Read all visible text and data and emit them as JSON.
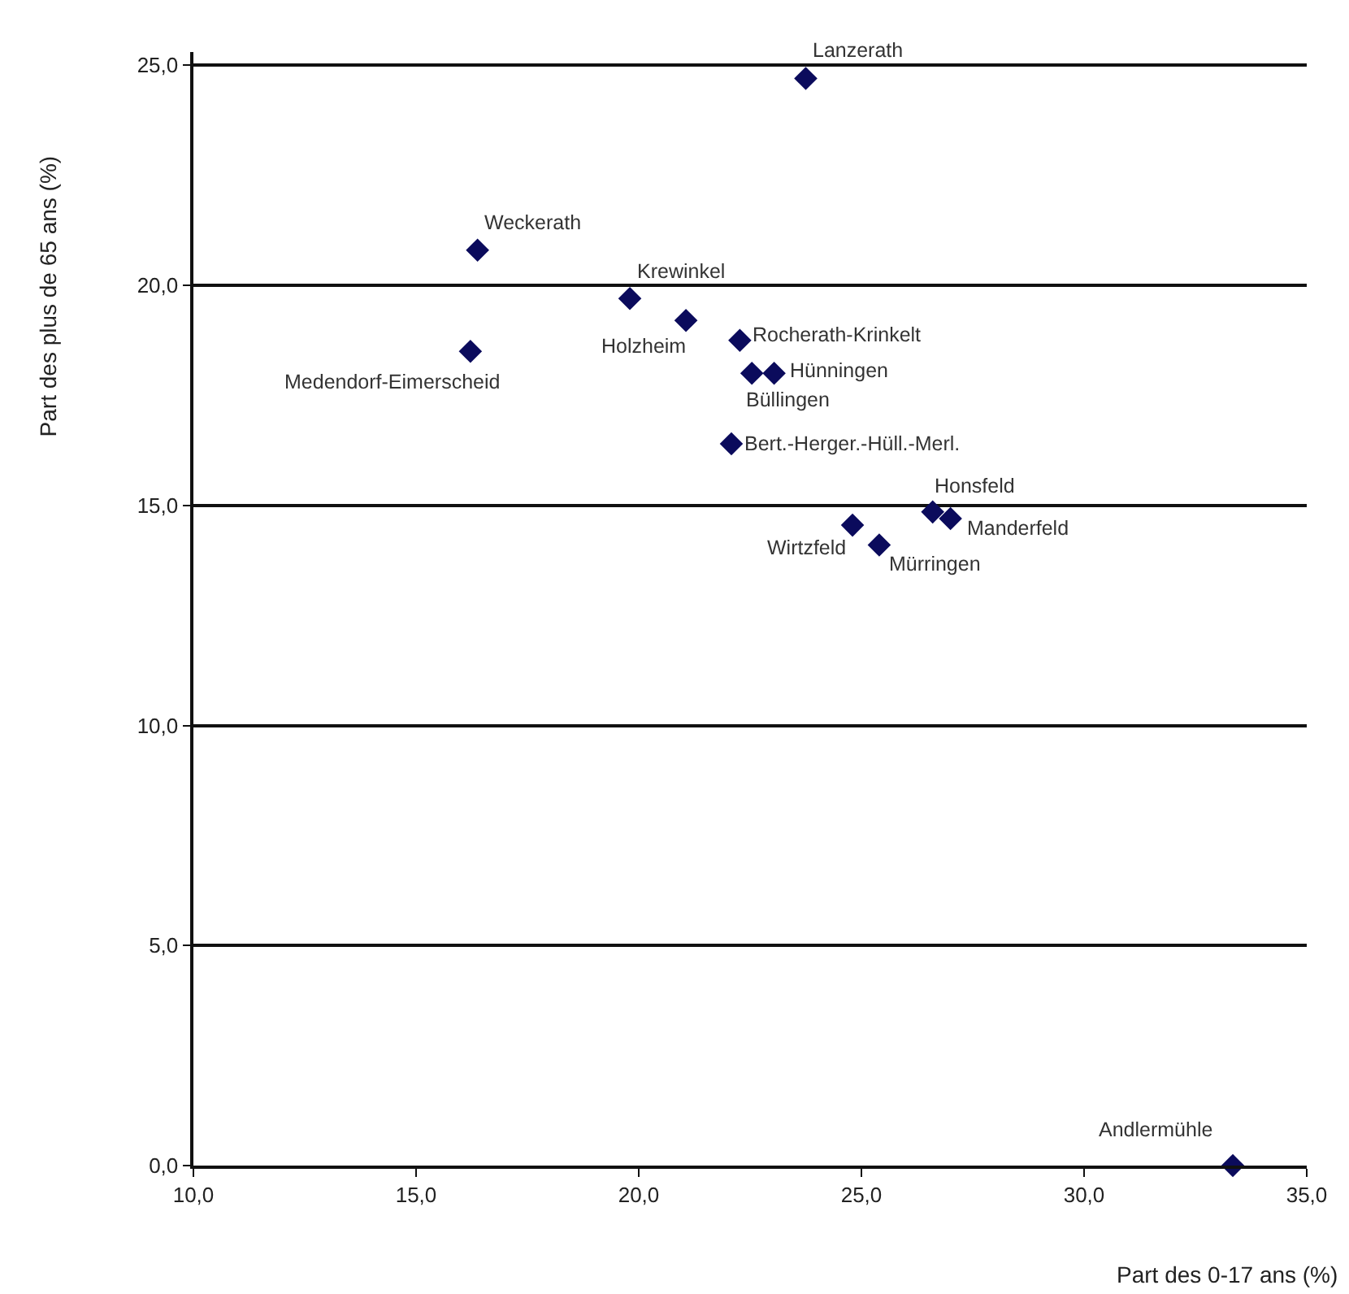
{
  "chart_data": {
    "type": "scatter",
    "xlabel": "Part des 0-17 ans (%)",
    "ylabel": "Part des plus de 65 ans (%)",
    "series": [
      {
        "color": "#0b0b5c",
        "x": [
          23.75,
          16.38,
          19.8,
          21.06,
          16.22,
          22.27,
          22.54,
          23.04,
          22.08,
          26.6,
          27.0,
          24.8,
          25.4,
          33.34
        ],
        "values": [
          24.7,
          20.8,
          19.7,
          19.2,
          18.5,
          18.75,
          18.0,
          18.0,
          16.4,
          14.85,
          14.7,
          14.55,
          14.1,
          0
        ]
      }
    ],
    "annotations": [
      {
        "text": "Lanzerath",
        "x": 23.75,
        "y": 24.7
      },
      {
        "text": "Weckerath",
        "x": 16.38,
        "y": 20.8
      },
      {
        "text": "Krewinkel",
        "x": 19.8,
        "y": 19.7
      },
      {
        "text": "Holzheim",
        "x": 21.06,
        "y": 19.2
      },
      {
        "text": "Medendorf-Eimerscheid",
        "x": 16.22,
        "y": 18.5
      },
      {
        "text": "Rocherath-Krinkelt",
        "x": 22.27,
        "y": 18.75
      },
      {
        "text": "Büllingen",
        "x": 22.54,
        "y": 18.0
      },
      {
        "text": "Hünningen",
        "x": 23.04,
        "y": 18.0
      },
      {
        "text": "Bert.-Herger.-Hüll.-Merl.",
        "x": 22.08,
        "y": 16.4
      },
      {
        "text": "Honsfeld",
        "x": 26.6,
        "y": 14.85
      },
      {
        "text": "Manderfeld",
        "x": 27.0,
        "y": 14.7
      },
      {
        "text": "Wirtzfeld",
        "x": 24.8,
        "y": 14.55
      },
      {
        "text": "Mürringen",
        "x": 25.4,
        "y": 14.1
      },
      {
        "text": "Andlermühle",
        "x": 33.34,
        "y": 0
      }
    ],
    "xlim": [
      10,
      35
    ],
    "xticks": [
      {
        "value": 10,
        "label": "10,0"
      },
      {
        "value": 15,
        "label": "15,0"
      },
      {
        "value": 20,
        "label": "20,0"
      },
      {
        "value": 25,
        "label": "25,0"
      },
      {
        "value": 30,
        "label": "30,0"
      },
      {
        "value": 35,
        "label": "35,0"
      }
    ],
    "ylim": [
      0,
      25.3
    ],
    "yticks": [
      {
        "value": 0,
        "label": "0,0"
      },
      {
        "value": 5,
        "label": "5,0"
      },
      {
        "value": 10,
        "label": "10,0"
      },
      {
        "value": 15,
        "label": "15,0"
      },
      {
        "value": 20,
        "label": "20,0"
      },
      {
        "value": 25,
        "label": "25,0"
      }
    ],
    "grid": "y",
    "marker": "diamond"
  }
}
